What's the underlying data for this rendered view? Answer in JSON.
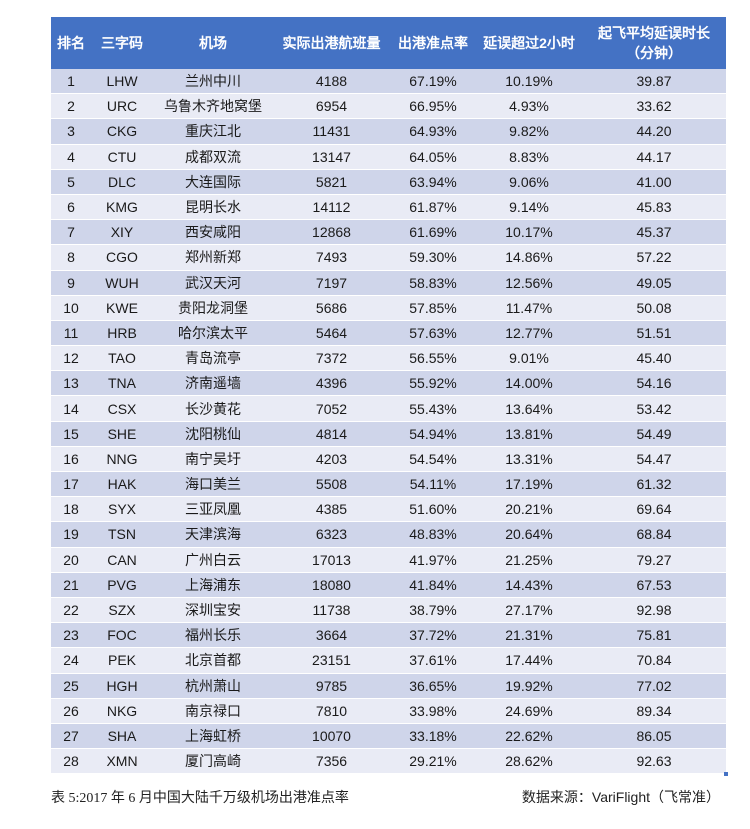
{
  "table": {
    "headers": [
      "排名",
      "三字码",
      "机场",
      "实际出港航班量",
      "出港准点率",
      "延误超过2小时",
      "起飞平均延误时长\n（分钟）"
    ],
    "rows": [
      [
        "1",
        "LHW",
        "兰州中川",
        "4188",
        "67.19%",
        "10.19%",
        "39.87"
      ],
      [
        "2",
        "URC",
        "乌鲁木齐地窝堡",
        "6954",
        "66.95%",
        "4.93%",
        "33.62"
      ],
      [
        "3",
        "CKG",
        "重庆江北",
        "11431",
        "64.93%",
        "9.82%",
        "44.20"
      ],
      [
        "4",
        "CTU",
        "成都双流",
        "13147",
        "64.05%",
        "8.83%",
        "44.17"
      ],
      [
        "5",
        "DLC",
        "大连国际",
        "5821",
        "63.94%",
        "9.06%",
        "41.00"
      ],
      [
        "6",
        "KMG",
        "昆明长水",
        "14112",
        "61.87%",
        "9.14%",
        "45.83"
      ],
      [
        "7",
        "XIY",
        "西安咸阳",
        "12868",
        "61.69%",
        "10.17%",
        "45.37"
      ],
      [
        "8",
        "CGO",
        "郑州新郑",
        "7493",
        "59.30%",
        "14.86%",
        "57.22"
      ],
      [
        "9",
        "WUH",
        "武汉天河",
        "7197",
        "58.83%",
        "12.56%",
        "49.05"
      ],
      [
        "10",
        "KWE",
        "贵阳龙洞堡",
        "5686",
        "57.85%",
        "11.47%",
        "50.08"
      ],
      [
        "11",
        "HRB",
        "哈尔滨太平",
        "5464",
        "57.63%",
        "12.77%",
        "51.51"
      ],
      [
        "12",
        "TAO",
        "青岛流亭",
        "7372",
        "56.55%",
        "9.01%",
        "45.40"
      ],
      [
        "13",
        "TNA",
        "济南遥墙",
        "4396",
        "55.92%",
        "14.00%",
        "54.16"
      ],
      [
        "14",
        "CSX",
        "长沙黄花",
        "7052",
        "55.43%",
        "13.64%",
        "53.42"
      ],
      [
        "15",
        "SHE",
        "沈阳桃仙",
        "4814",
        "54.94%",
        "13.81%",
        "54.49"
      ],
      [
        "16",
        "NNG",
        "南宁吴圩",
        "4203",
        "54.54%",
        "13.31%",
        "54.47"
      ],
      [
        "17",
        "HAK",
        "海口美兰",
        "5508",
        "54.11%",
        "17.19%",
        "61.32"
      ],
      [
        "18",
        "SYX",
        "三亚凤凰",
        "4385",
        "51.60%",
        "20.21%",
        "69.64"
      ],
      [
        "19",
        "TSN",
        "天津滨海",
        "6323",
        "48.83%",
        "20.64%",
        "68.84"
      ],
      [
        "20",
        "CAN",
        "广州白云",
        "17013",
        "41.97%",
        "21.25%",
        "79.27"
      ],
      [
        "21",
        "PVG",
        "上海浦东",
        "18080",
        "41.84%",
        "14.43%",
        "67.53"
      ],
      [
        "22",
        "SZX",
        "深圳宝安",
        "11738",
        "38.79%",
        "27.17%",
        "92.98"
      ],
      [
        "23",
        "FOC",
        "福州长乐",
        "3664",
        "37.72%",
        "21.31%",
        "75.81"
      ],
      [
        "24",
        "PEK",
        "北京首都",
        "23151",
        "37.61%",
        "17.44%",
        "70.84"
      ],
      [
        "25",
        "HGH",
        "杭州萧山",
        "9785",
        "36.65%",
        "19.92%",
        "77.02"
      ],
      [
        "26",
        "NKG",
        "南京禄口",
        "7810",
        "33.98%",
        "24.69%",
        "89.34"
      ],
      [
        "27",
        "SHA",
        "上海虹桥",
        "10070",
        "33.18%",
        "22.62%",
        "86.05"
      ],
      [
        "28",
        "XMN",
        "厦门高崎",
        "7356",
        "29.21%",
        "28.62%",
        "92.63"
      ]
    ]
  },
  "caption": "表 5:2017 年 6 月中国大陆千万级机场出港准点率",
  "source": "数据来源：VariFlight（飞常准）",
  "colors": {
    "header_bg": "#4472c4",
    "row_odd": "#cfd5ea",
    "row_even": "#e9ebf5"
  }
}
